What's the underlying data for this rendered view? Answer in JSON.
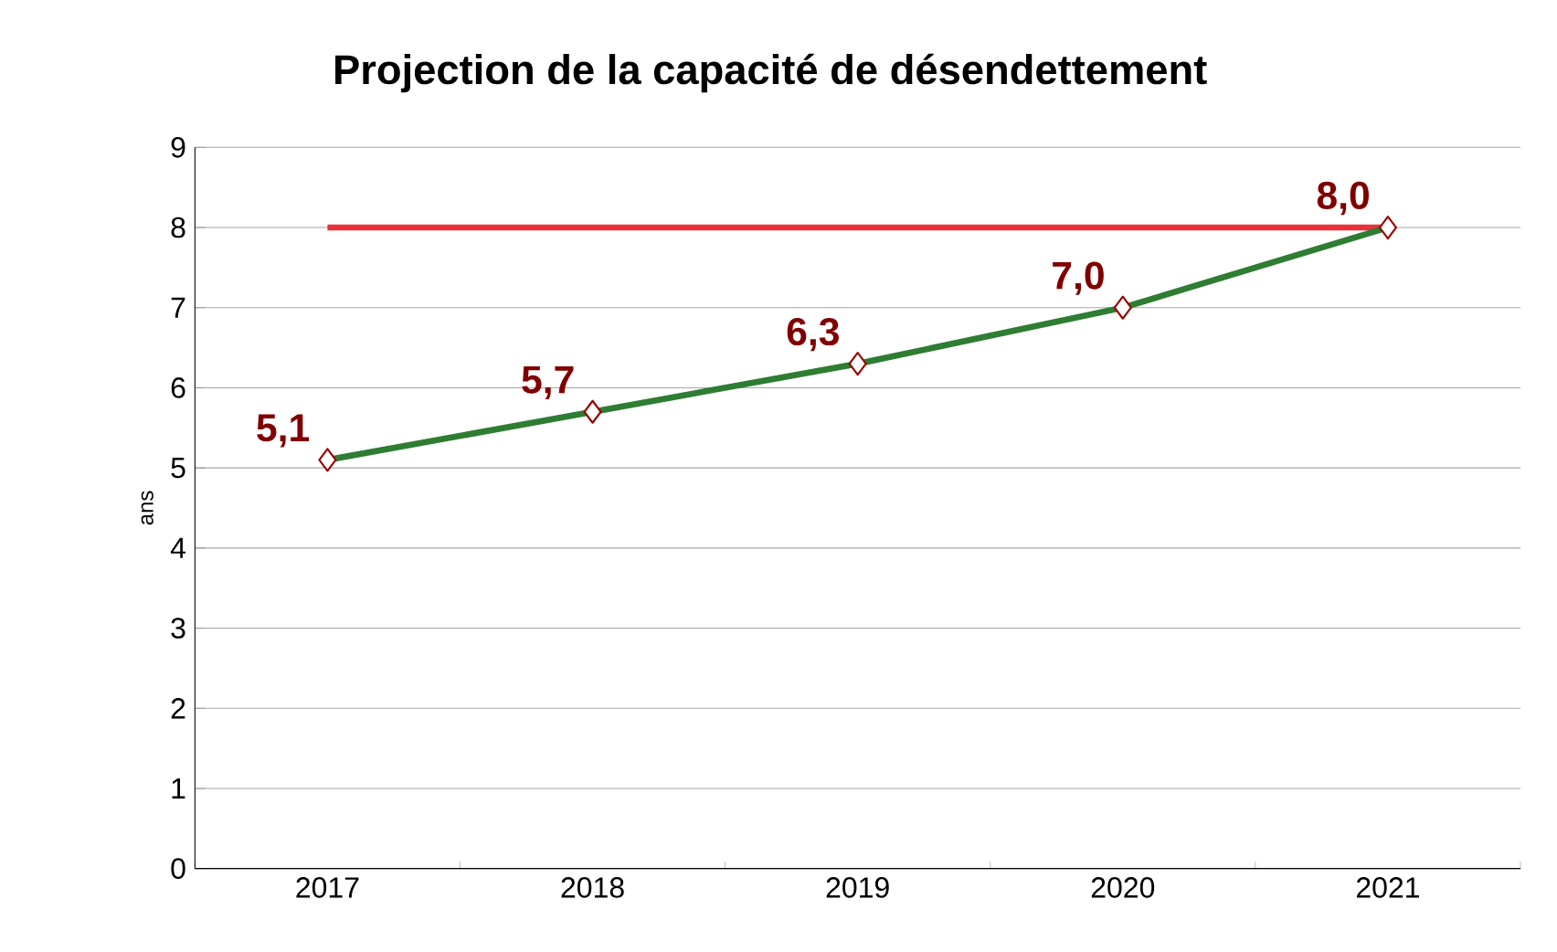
{
  "chart_data": {
    "type": "line",
    "title": "Projection de la capacité de désendettement",
    "ylabel": "ans",
    "categories": [
      "2017",
      "2018",
      "2019",
      "2020",
      "2021"
    ],
    "series": [
      {
        "color": "#2e7d32",
        "values": [
          5.1,
          5.7,
          6.3,
          7.0,
          8.0
        ],
        "value_labels": [
          "5,1",
          "5,7",
          "6,3",
          "7,0",
          "8,0"
        ]
      }
    ],
    "ylim": [
      0,
      9
    ],
    "yticks": [
      0,
      1,
      2,
      3,
      4,
      5,
      6,
      7,
      8,
      9
    ],
    "grid": "y",
    "marker": "diamond",
    "line_style": "solid",
    "ref_lines": [
      {
        "axis": "y",
        "value": 8,
        "color": "#e8303a"
      }
    ]
  }
}
